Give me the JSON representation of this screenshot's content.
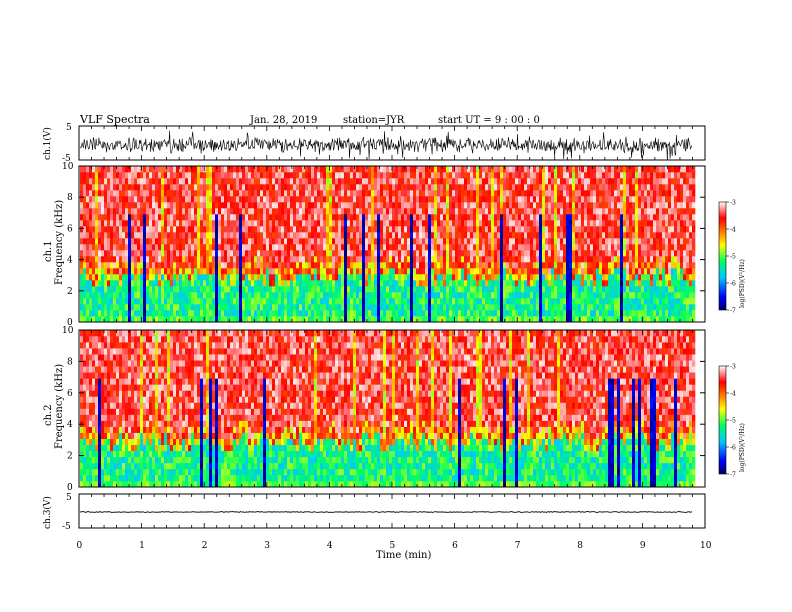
{
  "header": {
    "title": "VLF Spectra",
    "date": "Jan. 28, 2019",
    "station": "station=JYR",
    "start_ut": "start UT =  9 : 00 : 0"
  },
  "chart_data": [
    {
      "type": "line",
      "panel": "waveform-ch1",
      "ylabel": "ch.1(V)",
      "ylim": [
        -5,
        5
      ],
      "y_ticks": [
        "5",
        "-5"
      ],
      "xlim": [
        0,
        10
      ],
      "note_style": "noisy black trace"
    },
    {
      "type": "heatmap",
      "panel": "spectrogram-ch1",
      "ylabel": "ch.1\nFrequency (kHz)",
      "ylabel_line1": "ch.1",
      "ylabel_line2": "Frequency (kHz)",
      "ylim": [
        0,
        10
      ],
      "y_ticks": [
        "0",
        "2",
        "4",
        "6",
        "8",
        "10"
      ],
      "xlim": [
        0,
        9.8
      ],
      "colorbar": {
        "label": "log(PSD)(V²/Hz)",
        "range": [
          -7,
          -3
        ],
        "ticks": [
          "-3",
          "-4",
          "-5",
          "-6",
          "-7"
        ]
      }
    },
    {
      "type": "heatmap",
      "panel": "spectrogram-ch2",
      "ylabel_line1": "ch.2",
      "ylabel_line2": "Frequency (kHz)",
      "ylim": [
        0,
        10
      ],
      "y_ticks": [
        "0",
        "2",
        "4",
        "6",
        "8",
        "10"
      ],
      "xlim": [
        0,
        9.8
      ],
      "colorbar": {
        "label": "log(PSD)(V²/Hz)",
        "range": [
          -7,
          -3
        ],
        "ticks": [
          "-3",
          "-4",
          "-5",
          "-6",
          "-7"
        ]
      }
    },
    {
      "type": "line",
      "panel": "waveform-ch3",
      "ylabel": "ch.3(V)",
      "ylim": [
        -5,
        5
      ],
      "y_ticks": [
        "5",
        "-5"
      ],
      "xlim": [
        0,
        10
      ],
      "x_ticks": [
        "0",
        "1",
        "2",
        "3",
        "4",
        "5",
        "6",
        "7",
        "8",
        "9",
        "10"
      ],
      "xlabel": "Time (min)",
      "note_style": "flat black trace near -2"
    }
  ],
  "colors": {
    "trace": "#000000",
    "colormap": [
      "#000080",
      "#0000ff",
      "#00c8ff",
      "#00ff80",
      "#ffff00",
      "#ff8000",
      "#ff0000",
      "#ffffff"
    ]
  }
}
